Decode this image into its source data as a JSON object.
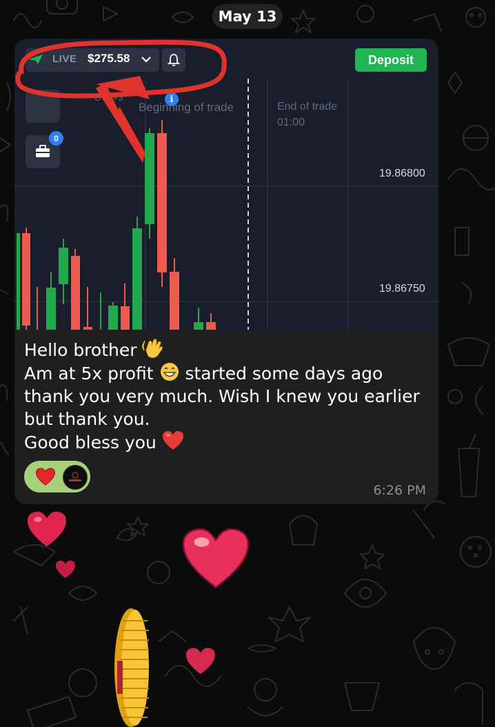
{
  "date_separator": "May 13",
  "screenshot": {
    "account_mode": "LIVE",
    "balance": "$275.58",
    "deposit_label": "Deposit",
    "timezone_label": "UTC+3",
    "badge_count": "0",
    "info_label": "i",
    "beginning_label": "Beginning of trade",
    "end_label": "End of trade",
    "end_time": "01:00",
    "price_high": "19.86800",
    "price_low": "19.86750",
    "accent_green": "#1fb553",
    "accent_red": "#ec5b4e"
  },
  "message": {
    "lines": [
      "Hello brother",
      "Am at 5x profit",
      "started some days ago",
      "thank you very much. Wish I knew you earlier",
      "but thank you.",
      "Good bless you"
    ],
    "emojis": [
      "waving-hand",
      "grinning-face",
      "red-heart"
    ],
    "time": "6:26 PM"
  },
  "reactions": [
    {
      "type": "heart-emoji"
    },
    {
      "type": "user-avatar"
    }
  ],
  "background": {
    "color": "#0b0b0b",
    "pattern": "doodle-outline"
  }
}
